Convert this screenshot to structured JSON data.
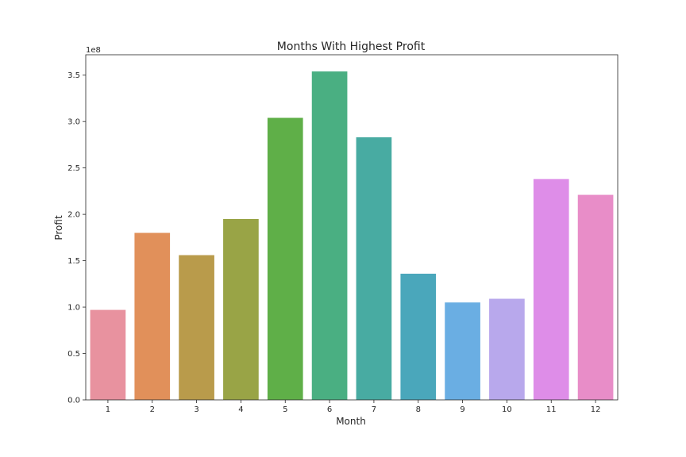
{
  "chart_data": {
    "type": "bar",
    "title": "Months With Highest Profit",
    "xlabel": "Month",
    "ylabel": "Profit",
    "y_offset_label": "1e8",
    "categories": [
      "1",
      "2",
      "3",
      "4",
      "5",
      "6",
      "7",
      "8",
      "9",
      "10",
      "11",
      "12"
    ],
    "values": [
      97000000,
      180000000,
      156000000,
      195000000,
      304000000,
      354000000,
      283000000,
      136000000,
      105000000,
      109000000,
      238000000,
      221000000
    ],
    "colors": [
      "#e8929f",
      "#e1905a",
      "#b99b4b",
      "#99a446",
      "#5faf48",
      "#4aaf82",
      "#48aba2",
      "#4aa7bb",
      "#6aaee3",
      "#b8a8ec",
      "#de8de8",
      "#e88dc8"
    ],
    "ylim": [
      0,
      372000000
    ],
    "yticks": [
      0,
      50000000,
      100000000,
      150000000,
      200000000,
      250000000,
      300000000,
      350000000
    ],
    "ytick_labels": [
      "0.0",
      "0.5",
      "1.0",
      "1.5",
      "2.0",
      "2.5",
      "3.0",
      "3.5"
    ],
    "grid": false,
    "legend": "none"
  }
}
